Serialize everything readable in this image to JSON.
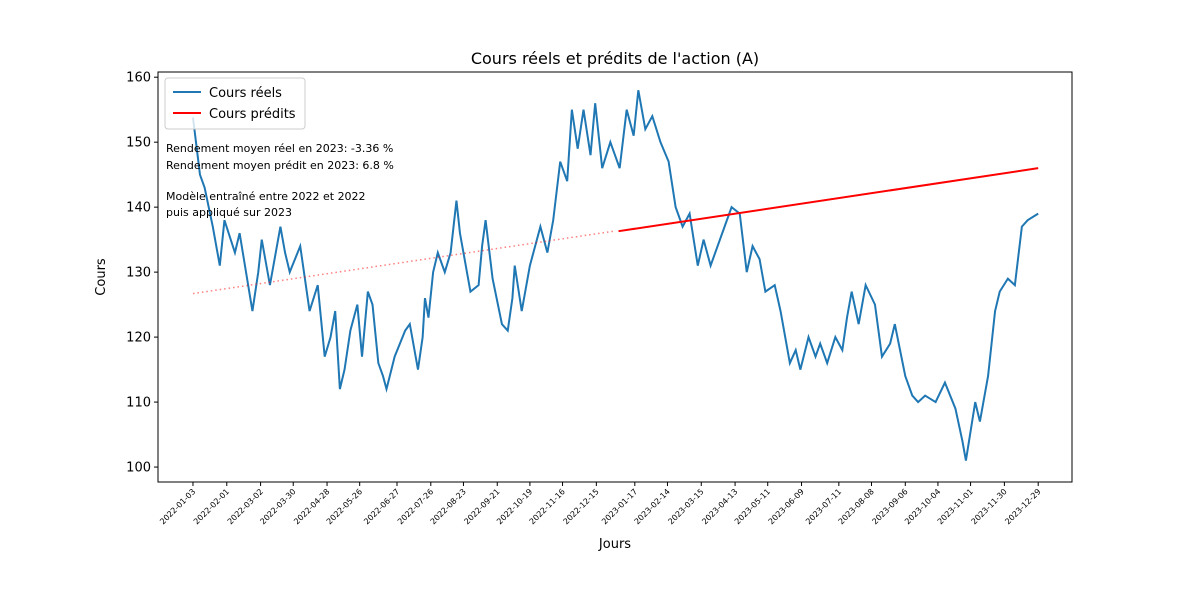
{
  "chart_data": {
    "type": "line",
    "title": "Cours réels et prédits de l'action (A)",
    "x_label": "Jours",
    "y_label": "Cours",
    "annotations": [
      "Rendement moyen réel en 2023: -3.36 %",
      "Rendement moyen prédit en 2023: 6.8 %",
      "Modèle entraîné entre 2022 et 2022",
      "puis appliqué sur 2023"
    ],
    "legend": "upper left",
    "series": [
      {
        "name": "Cours réels",
        "color": "#1f77b4",
        "style": "solid",
        "x": [
          "2022-01-03",
          "2022-01-09",
          "2022-01-13",
          "2022-01-20",
          "2022-01-26",
          "2022-01-30",
          "2022-02-08",
          "2022-02-12",
          "2022-02-23",
          "2022-02-28",
          "2022-03-03",
          "2022-03-10",
          "2022-03-19",
          "2022-03-23",
          "2022-03-27",
          "2022-04-05",
          "2022-04-13",
          "2022-04-20",
          "2022-04-26",
          "2022-05-01",
          "2022-05-05",
          "2022-05-09",
          "2022-05-13",
          "2022-05-18",
          "2022-05-24",
          "2022-05-28",
          "2022-06-02",
          "2022-06-06",
          "2022-06-11",
          "2022-06-15",
          "2022-06-18",
          "2022-06-25",
          "2022-07-04",
          "2022-07-08",
          "2022-07-15",
          "2022-07-19",
          "2022-07-21",
          "2022-07-24",
          "2022-07-28",
          "2022-08-01",
          "2022-08-07",
          "2022-08-12",
          "2022-08-17",
          "2022-08-20",
          "2022-08-29",
          "2022-09-05",
          "2022-09-08",
          "2022-09-11",
          "2022-09-17",
          "2022-09-25",
          "2022-09-30",
          "2022-10-04",
          "2022-10-06",
          "2022-10-12",
          "2022-10-19",
          "2022-10-28",
          "2022-11-03",
          "2022-11-08",
          "2022-11-14",
          "2022-11-20",
          "2022-11-24",
          "2022-11-29",
          "2022-12-04",
          "2022-12-10",
          "2022-12-14",
          "2022-12-20",
          "2022-12-27",
          "2023-01-04",
          "2023-01-10",
          "2023-01-16",
          "2023-01-20",
          "2023-01-26",
          "2023-02-01",
          "2023-02-08",
          "2023-02-15",
          "2023-02-21",
          "2023-02-27",
          "2023-03-05",
          "2023-03-12",
          "2023-03-17",
          "2023-03-23",
          "2023-03-29",
          "2023-04-04",
          "2023-04-10",
          "2023-04-17",
          "2023-04-23",
          "2023-04-28",
          "2023-05-04",
          "2023-05-09",
          "2023-05-17",
          "2023-05-22",
          "2023-05-30",
          "2023-06-04",
          "2023-06-08",
          "2023-06-15",
          "2023-06-21",
          "2023-06-25",
          "2023-07-01",
          "2023-07-08",
          "2023-07-14",
          "2023-07-18",
          "2023-07-22",
          "2023-07-28",
          "2023-08-03",
          "2023-08-11",
          "2023-08-17",
          "2023-08-24",
          "2023-08-28",
          "2023-09-06",
          "2023-09-12",
          "2023-09-17",
          "2023-09-23",
          "2023-10-02",
          "2023-10-10",
          "2023-10-19",
          "2023-10-25",
          "2023-10-28",
          "2023-11-05",
          "2023-11-09",
          "2023-11-16",
          "2023-11-22",
          "2023-11-26",
          "2023-12-03",
          "2023-12-09",
          "2023-12-15",
          "2023-12-20",
          "2023-12-29"
        ],
        "values": [
          153.8,
          145,
          143,
          137,
          131,
          138,
          133,
          136,
          124,
          130,
          135,
          128,
          137,
          133,
          130,
          134,
          124,
          128,
          117,
          120,
          124,
          112,
          115,
          121,
          125,
          117,
          127,
          125,
          116,
          114,
          112,
          117,
          121,
          122,
          115,
          120,
          126,
          123,
          130,
          133,
          130,
          133,
          141,
          136,
          127,
          128,
          134,
          138,
          129,
          122,
          121,
          126,
          131,
          124,
          131,
          137,
          133,
          138,
          147,
          144,
          155,
          149,
          155,
          148,
          156,
          146,
          150,
          146,
          155,
          151,
          158,
          152,
          154,
          150,
          147,
          140,
          137,
          139,
          131,
          135,
          131,
          134,
          137,
          140,
          139,
          130,
          134,
          132,
          127,
          128,
          124,
          116,
          118,
          115,
          120,
          117,
          119,
          116,
          120,
          118,
          123,
          127,
          122,
          128,
          125,
          117,
          119,
          122,
          114,
          111,
          110,
          111,
          110,
          113,
          109,
          104,
          101,
          110,
          107,
          114,
          124,
          127,
          129,
          128,
          137,
          138,
          139
        ]
      },
      {
        "color": "#ff0000",
        "style": "dotted",
        "x": [
          "2022-01-03",
          "2022-12-30"
        ],
        "values": [
          126.7,
          136.3
        ]
      },
      {
        "name": "Cours prédits",
        "color": "#ff0000",
        "style": "solid",
        "x": [
          "2023-01-03",
          "2023-12-29"
        ],
        "values": [
          136.3,
          146
        ]
      }
    ],
    "xlim": [
      "2021-12-04",
      "2024-01-27"
    ],
    "xticks": [
      "2022-01-03",
      "2022-02-01",
      "2022-03-02",
      "2022-03-30",
      "2022-04-28",
      "2022-05-26",
      "2022-06-27",
      "2022-07-26",
      "2022-08-23",
      "2022-09-21",
      "2022-10-19",
      "2022-11-16",
      "2022-12-15",
      "2023-01-17",
      "2023-02-14",
      "2023-03-15",
      "2023-04-13",
      "2023-05-11",
      "2023-06-09",
      "2023-07-11",
      "2023-08-08",
      "2023-09-06",
      "2023-10-04",
      "2023-11-01",
      "2023-11-30",
      "2023-12-29"
    ],
    "ylim": [
      97.7,
      160.8
    ],
    "yticks": [
      100,
      110,
      120,
      130,
      140,
      150,
      160
    ]
  }
}
